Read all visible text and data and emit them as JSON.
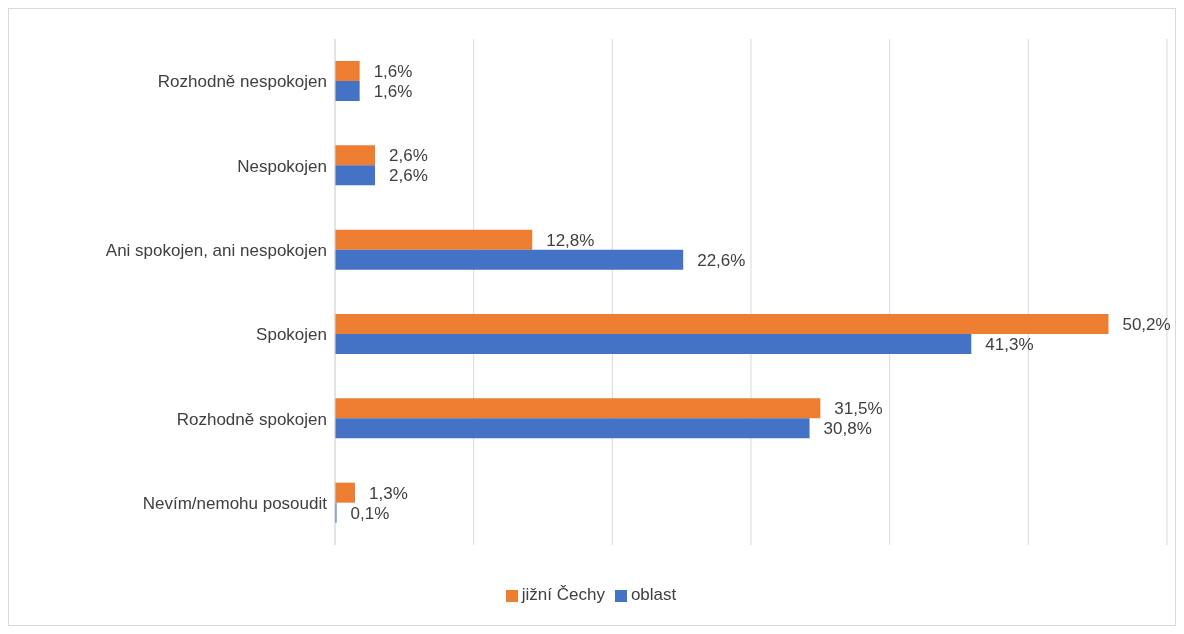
{
  "chart_data": {
    "type": "bar",
    "orientation": "horizontal",
    "categories": [
      "Rozhodně nespokojen",
      "Nespokojen",
      "Ani spokojen, ani nespokojen",
      "Spokojen",
      "Rozhodně spokojen",
      "Nevím/nemohu posoudit"
    ],
    "series": [
      {
        "name": "jižní Čechy",
        "color": "#ed7d31",
        "values": [
          1.6,
          2.6,
          12.8,
          50.2,
          31.5,
          1.3
        ],
        "value_labels": [
          "1,6%",
          "2,6%",
          "12,8%",
          "50,2%",
          "31,5%",
          "1,3%"
        ]
      },
      {
        "name": "oblast",
        "color": "#4472c4",
        "values": [
          1.6,
          2.6,
          22.6,
          41.3,
          30.8,
          0.1
        ],
        "value_labels": [
          "1,6%",
          "2,6%",
          "22,6%",
          "41,3%",
          "30,8%",
          "0,1%"
        ]
      }
    ],
    "grid": "x",
    "legend": "bottom",
    "tick_labels": "y"
  }
}
